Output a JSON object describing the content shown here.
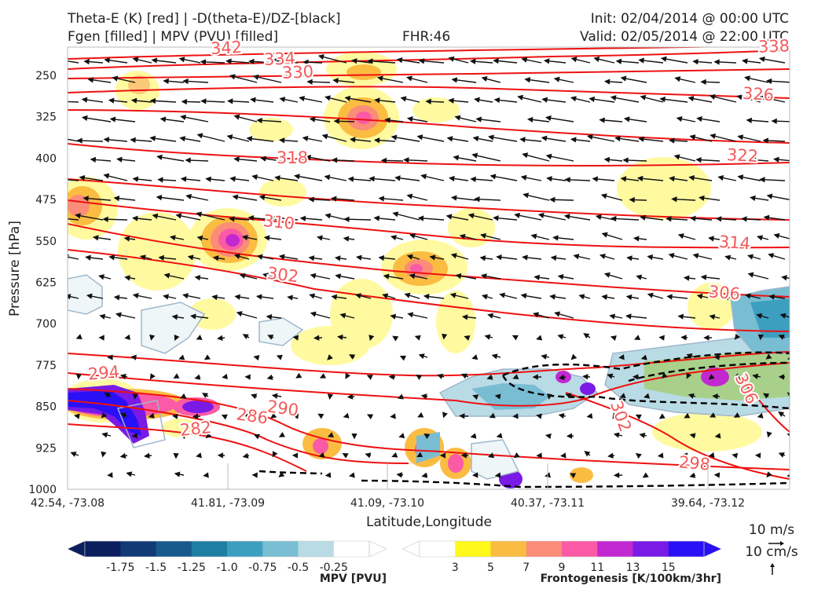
{
  "header": {
    "title_line1": "Theta-E (K) [red] | -D(theta-E)/DZ-[black]",
    "title_line2": "Fgen [filled] | MPV (PVU) [filled]",
    "fhr": "FHR:46",
    "init": "Init: 02/04/2014 @ 00:00 UTC",
    "valid": "Valid: 02/05/2014 @ 22:00 UTC"
  },
  "chart_data": {
    "type": "cross-section",
    "xlabel": "Latitude,Longitude",
    "ylabel": "Pressure [hPa]",
    "ylim": [
      1000,
      200
    ],
    "y_ticks": [
      "250",
      "325",
      "400",
      "475",
      "550",
      "625",
      "700",
      "775",
      "850",
      "925",
      "1000"
    ],
    "x_ticks": [
      "42.54, -73.08",
      "41.81, -73.09",
      "41.09, -73.10",
      "40.37, -73.11",
      "39.64, -73.12"
    ],
    "theta_e_contour_labels": [
      "342",
      "334",
      "330",
      "338",
      "326",
      "322",
      "318",
      "314",
      "310",
      "306",
      "302",
      "302",
      "298",
      "294",
      "290",
      "286",
      "282",
      "306"
    ],
    "mpv_colorbar": {
      "label": "MPV [PVU]",
      "ticks": [
        "-1.75",
        "-1.5",
        "-1.25",
        "-1.0",
        "-0.75",
        "-0.5",
        "-0.25"
      ],
      "colors": [
        "#0b1e5e",
        "#123a75",
        "#175a8c",
        "#1f7ea3",
        "#3d9fc0",
        "#79bdd3",
        "#b9dbe5",
        "#ffffff"
      ]
    },
    "fgen_colorbar": {
      "label": "Frontogenesis [K/100km/3hr]",
      "ticks": [
        "3",
        "5",
        "7",
        "9",
        "11",
        "13",
        "15"
      ],
      "colors": [
        "#ffffff",
        "#fff81a",
        "#fbbc42",
        "#fa8c78",
        "#fa5aa6",
        "#c228d0",
        "#7a1ae6",
        "#2a10f6"
      ]
    },
    "vector_key": {
      "horizontal": "10 m/s",
      "vertical": "10 cm/s"
    }
  }
}
